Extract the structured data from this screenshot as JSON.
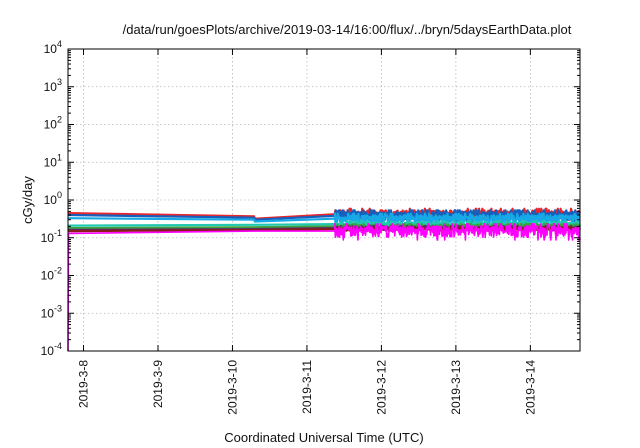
{
  "chart_data": {
    "type": "line",
    "title": "/data/run/goesPlots/archive/2019-03-14/16:00/flux/../bryn/5daysEarthData.plot",
    "xlabel": "Coordinated Universal Time (UTC)",
    "ylabel": "cGy/day",
    "y_scale": "log",
    "ylim": [
      0.0001,
      10000
    ],
    "xlim": [
      "2019-03-07T19:00",
      "2019-03-14T16:00"
    ],
    "grid": true,
    "y_ticks": [
      {
        "base": "10",
        "exp": "4",
        "value": 10000
      },
      {
        "base": "10",
        "exp": "3",
        "value": 1000
      },
      {
        "base": "10",
        "exp": "2",
        "value": 100
      },
      {
        "base": "10",
        "exp": "1",
        "value": 10
      },
      {
        "base": "10",
        "exp": "0",
        "value": 1
      },
      {
        "base": "10",
        "exp": "-1",
        "value": 0.1
      },
      {
        "base": "10",
        "exp": "-2",
        "value": 0.01
      },
      {
        "base": "10",
        "exp": "-3",
        "value": 0.001
      },
      {
        "base": "10",
        "exp": "-4",
        "value": 0.0001
      }
    ],
    "x_ticks": [
      {
        "label": "2019-3-8",
        "value": "2019-03-08T00:00"
      },
      {
        "label": "2019-3-9",
        "value": "2019-03-09T00:00"
      },
      {
        "label": "2019-3-10",
        "value": "2019-03-10T00:00"
      },
      {
        "label": "2019-3-11",
        "value": "2019-03-11T00:00"
      },
      {
        "label": "2019-3-12",
        "value": "2019-03-12T00:00"
      },
      {
        "label": "2019-3-13",
        "value": "2019-03-13T00:00"
      },
      {
        "label": "2019-3-14",
        "value": "2019-03-14T00:00"
      }
    ],
    "series": [
      {
        "color": "#e8262b",
        "x": [
          "2019-03-07T19:00",
          "2019-03-10T07:00",
          "2019-03-10T07:10",
          "2019-03-11T09:00",
          "2019-03-14T16:00"
        ],
        "y": [
          0.45,
          0.37,
          0.32,
          0.42,
          0.42
        ],
        "noise": 0.25
      },
      {
        "color": "#1560bd",
        "x": [
          "2019-03-07T19:00",
          "2019-03-10T07:00",
          "2019-03-10T07:10",
          "2019-03-11T09:00",
          "2019-03-14T16:00"
        ],
        "y": [
          0.4,
          0.34,
          0.3,
          0.38,
          0.38
        ],
        "noise": 0.25
      },
      {
        "color": "#17a8e6",
        "x": [
          "2019-03-07T19:00",
          "2019-03-10T07:00",
          "2019-03-10T07:10",
          "2019-03-11T09:00",
          "2019-03-14T16:00"
        ],
        "y": [
          0.33,
          0.3,
          0.27,
          0.32,
          0.32
        ],
        "noise": 0.22
      },
      {
        "color": "#20c8b0",
        "x": [
          "2019-03-07T19:00",
          "2019-03-10T07:00",
          "2019-03-10T07:10",
          "2019-03-11T09:00",
          "2019-03-14T16:00"
        ],
        "y": [
          0.21,
          0.22,
          0.22,
          0.23,
          0.23
        ],
        "noise": 0.12
      },
      {
        "color": "#3aa040",
        "x": [
          "2019-03-07T19:00",
          "2019-03-10T07:00",
          "2019-03-10T07:10",
          "2019-03-11T09:00",
          "2019-03-14T16:00"
        ],
        "y": [
          0.18,
          0.19,
          0.19,
          0.2,
          0.2
        ],
        "noise": 0.1
      },
      {
        "color": "#5a2a6a",
        "x": [
          "2019-03-07T19:00",
          "2019-03-10T07:00",
          "2019-03-10T07:10",
          "2019-03-11T09:00",
          "2019-03-14T16:00"
        ],
        "y": [
          0.16,
          0.17,
          0.17,
          0.18,
          0.18
        ],
        "noise": 0.08
      },
      {
        "color": "#8b1a1a",
        "x": [
          "2019-03-07T19:00",
          "2019-03-10T07:00",
          "2019-03-10T07:10",
          "2019-03-11T09:00",
          "2019-03-14T16:00"
        ],
        "y": [
          0.15,
          0.16,
          0.16,
          0.17,
          0.17
        ],
        "noise": 0.08
      },
      {
        "color": "#ff00ff",
        "x": [
          "2019-03-07T19:00",
          "2019-03-07T19:10",
          "2019-03-10T07:00",
          "2019-03-10T07:10",
          "2019-03-11T09:00",
          "2019-03-14T16:00"
        ],
        "y": [
          0.0001,
          0.13,
          0.15,
          0.15,
          0.15,
          0.15
        ],
        "noise": 0.35
      }
    ]
  }
}
